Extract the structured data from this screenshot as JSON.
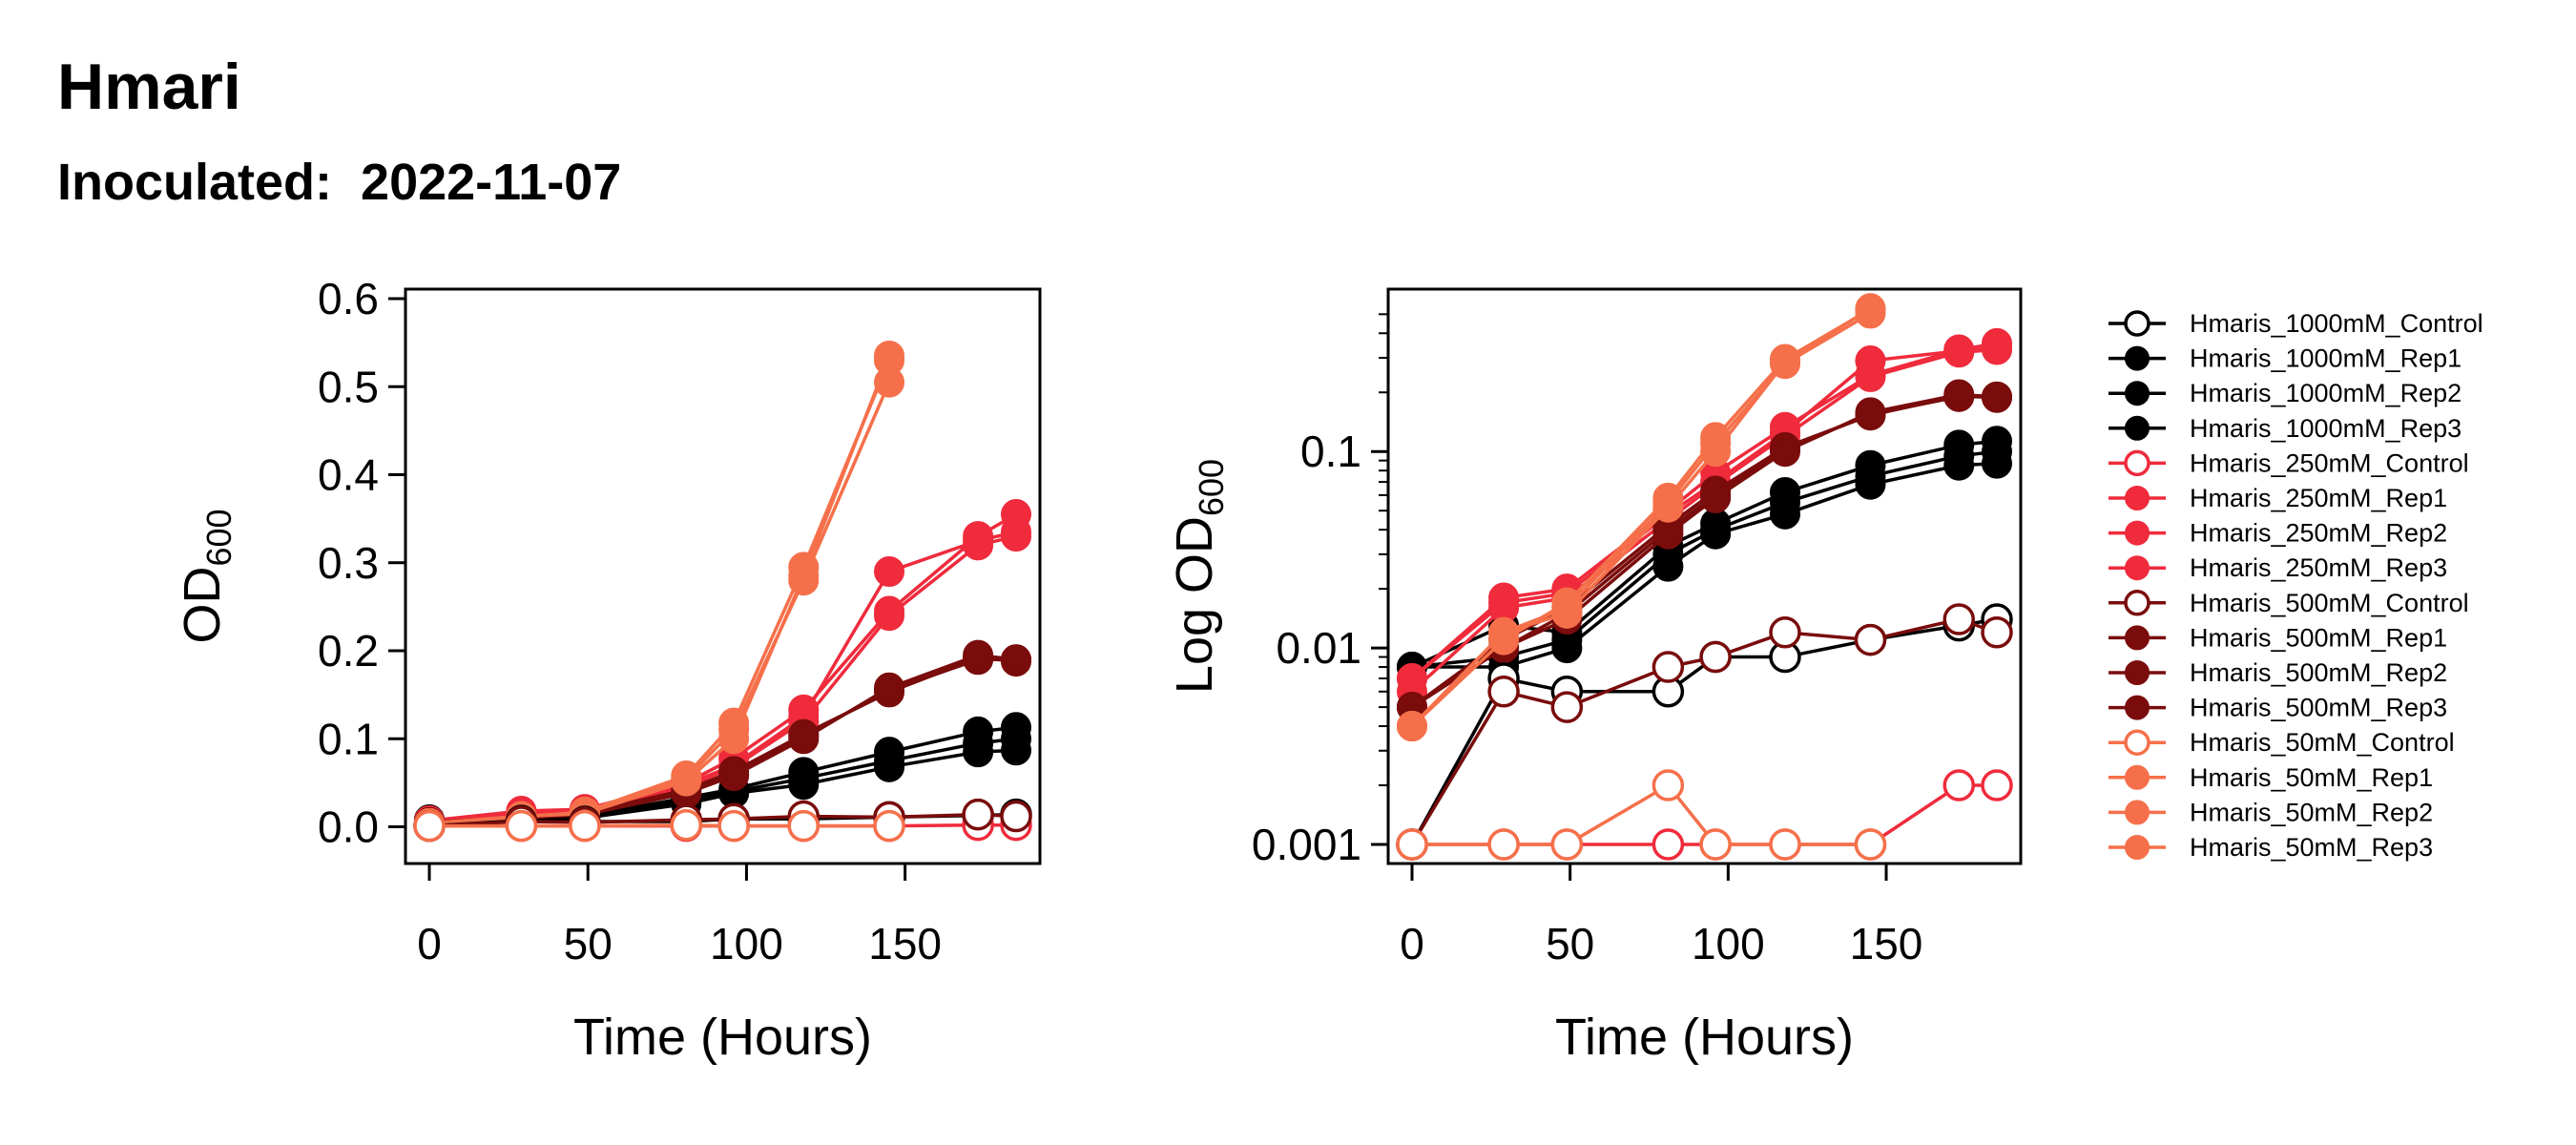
{
  "header": {
    "title": "Hmari",
    "subtitle_label": "Inoculated:",
    "subtitle_date": "2022-11-07"
  },
  "colors": {
    "1000mM": "#000000",
    "250mM": "#ef2b3c",
    "500mM": "#7a0c0c",
    "50mM": "#f5704a"
  },
  "chart_data": [
    {
      "type": "line",
      "xlabel": "Time (Hours)",
      "ylabel": "OD600",
      "xlim": [
        0,
        185
      ],
      "ylim": [
        -0.02,
        0.6
      ],
      "xticks": [
        0,
        50,
        100,
        150
      ],
      "yticks": [
        0.0,
        0.1,
        0.2,
        0.3,
        0.4,
        0.5,
        0.6
      ],
      "ytick_labels": [
        "0.0",
        "0.1",
        "0.2",
        "0.3",
        "0.4",
        "0.5",
        "0.6"
      ],
      "y_scale": "linear",
      "grid": false
    },
    {
      "type": "line",
      "xlabel": "Time (Hours)",
      "ylabel": "Log OD600",
      "xlim": [
        0,
        185
      ],
      "ylim": [
        0.001,
        0.6
      ],
      "xticks": [
        0,
        50,
        100,
        150
      ],
      "yticks": [
        0.001,
        0.01,
        0.1
      ],
      "ytick_labels": [
        "0.001",
        "0.01",
        "0.1"
      ],
      "y_scale": "log",
      "grid": false
    }
  ],
  "time_points": [
    0,
    29,
    49,
    81,
    96,
    118,
    145,
    173,
    185
  ],
  "series": [
    {
      "name": "Hmaris_1000mM_Control",
      "group": "1000mM",
      "control": true,
      "values": [
        0.001,
        0.007,
        0.006,
        0.006,
        0.009,
        0.009,
        0.011,
        0.013,
        0.014
      ]
    },
    {
      "name": "Hmaris_1000mM_Rep1",
      "group": "1000mM",
      "control": false,
      "values": [
        0.008,
        0.009,
        0.011,
        0.03,
        0.04,
        0.055,
        0.075,
        0.095,
        0.1
      ]
    },
    {
      "name": "Hmaris_1000mM_Rep2",
      "group": "1000mM",
      "control": false,
      "values": [
        0.008,
        0.013,
        0.012,
        0.033,
        0.043,
        0.062,
        0.085,
        0.108,
        0.113
      ]
    },
    {
      "name": "Hmaris_1000mM_Rep3",
      "group": "1000mM",
      "control": false,
      "values": [
        0.008,
        0.008,
        0.01,
        0.026,
        0.038,
        0.048,
        0.068,
        0.085,
        0.087
      ]
    },
    {
      "name": "Hmaris_250mM_Control",
      "group": "250mM",
      "control": true,
      "values": [
        0.001,
        0.001,
        0.001,
        0.001,
        0.001,
        0.001,
        0.001,
        0.002,
        0.002
      ]
    },
    {
      "name": "Hmaris_250mM_Rep1",
      "group": "250mM",
      "control": false,
      "values": [
        0.007,
        0.017,
        0.019,
        0.048,
        0.07,
        0.125,
        0.29,
        0.325,
        0.335
      ]
    },
    {
      "name": "Hmaris_250mM_Rep2",
      "group": "250mM",
      "control": false,
      "values": [
        0.007,
        0.018,
        0.02,
        0.05,
        0.078,
        0.133,
        0.245,
        0.33,
        0.355
      ]
    },
    {
      "name": "Hmaris_250mM_Rep3",
      "group": "250mM",
      "control": false,
      "values": [
        0.006,
        0.016,
        0.018,
        0.045,
        0.068,
        0.12,
        0.24,
        0.32,
        0.33
      ]
    },
    {
      "name": "Hmaris_500mM_Control",
      "group": "500mM",
      "control": true,
      "values": [
        0.001,
        0.006,
        0.005,
        0.008,
        0.009,
        0.012,
        0.011,
        0.014,
        0.012
      ]
    },
    {
      "name": "Hmaris_500mM_Rep1",
      "group": "500mM",
      "control": false,
      "values": [
        0.005,
        0.01,
        0.015,
        0.04,
        0.06,
        0.103,
        0.155,
        0.19,
        0.19
      ]
    },
    {
      "name": "Hmaris_500mM_Rep2",
      "group": "500mM",
      "control": false,
      "values": [
        0.005,
        0.011,
        0.016,
        0.042,
        0.063,
        0.105,
        0.153,
        0.192,
        0.188
      ]
    },
    {
      "name": "Hmaris_500mM_Rep3",
      "group": "500mM",
      "control": false,
      "values": [
        0.005,
        0.01,
        0.014,
        0.038,
        0.058,
        0.1,
        0.158,
        0.195,
        0.19
      ]
    },
    {
      "name": "Hmaris_50mM_Control",
      "group": "50mM",
      "control": true,
      "values": [
        0.001,
        0.001,
        0.001,
        0.002,
        0.001,
        0.001,
        0.001,
        null,
        null
      ]
    },
    {
      "name": "Hmaris_50mM_Rep1",
      "group": "50mM",
      "control": false,
      "values": [
        0.004,
        0.012,
        0.016,
        0.055,
        0.11,
        0.28,
        0.505,
        null,
        null
      ]
    },
    {
      "name": "Hmaris_50mM_Rep2",
      "group": "50mM",
      "control": false,
      "values": [
        0.004,
        0.011,
        0.017,
        0.058,
        0.118,
        0.295,
        0.53,
        null,
        null
      ]
    },
    {
      "name": "Hmaris_50mM_Rep3",
      "group": "50mM",
      "control": false,
      "values": [
        0.004,
        0.012,
        0.015,
        0.052,
        0.1,
        0.285,
        0.535,
        null,
        null
      ]
    }
  ]
}
